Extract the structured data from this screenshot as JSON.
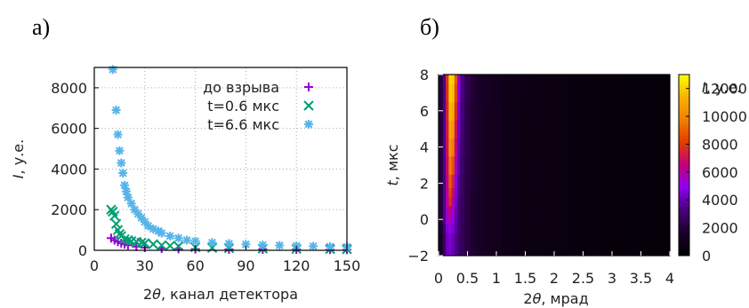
{
  "panels": {
    "left_label": "а)",
    "right_label": "б)"
  },
  "chart_data": [
    {
      "type": "scatter",
      "xlabel_prefix": "2",
      "xlabel_theta": "θ",
      "xlabel_rest": ", канал детектора",
      "ylabel_I": "I",
      "ylabel_rest": ", у.е.",
      "xlim": [
        0,
        150
      ],
      "ylim": [
        0,
        9000
      ],
      "xticks": [
        0,
        30,
        60,
        90,
        120,
        150
      ],
      "yticks": [
        0,
        2000,
        4000,
        6000,
        8000
      ],
      "grid": true,
      "legend_position": "top-right",
      "series": [
        {
          "name": "до взрыва",
          "marker": "plus",
          "color": "#9400d3",
          "x": [
            10,
            12,
            14,
            16,
            18,
            20,
            25,
            30,
            40,
            50,
            60,
            80,
            100,
            120,
            140,
            150
          ],
          "y": [
            600,
            500,
            420,
            350,
            300,
            250,
            180,
            130,
            90,
            70,
            60,
            50,
            45,
            40,
            35,
            30
          ]
        },
        {
          "name": "t=0.6 мкс",
          "marker": "x",
          "color": "#009e73",
          "x": [
            10,
            11,
            12,
            13,
            14,
            15,
            16,
            18,
            20,
            22,
            25,
            28,
            30,
            35,
            40,
            45,
            50,
            60,
            70,
            80,
            100,
            120,
            140,
            150
          ],
          "y": [
            2000,
            1900,
            1700,
            1300,
            1000,
            800,
            700,
            550,
            500,
            450,
            420,
            380,
            350,
            300,
            250,
            220,
            200,
            150,
            120,
            100,
            80,
            70,
            60,
            55
          ]
        },
        {
          "name": "t=6.6 мкс",
          "marker": "star",
          "color": "#56b4e9",
          "x": [
            11,
            13,
            14,
            15,
            16,
            17,
            18,
            19,
            20,
            22,
            24,
            26,
            28,
            30,
            32,
            35,
            38,
            40,
            45,
            50,
            55,
            60,
            70,
            80,
            90,
            100,
            110,
            120,
            130,
            140,
            150
          ],
          "y": [
            8900,
            6900,
            5700,
            4900,
            4300,
            3800,
            3200,
            2900,
            2600,
            2300,
            2000,
            1800,
            1600,
            1400,
            1200,
            1050,
            950,
            850,
            700,
            600,
            500,
            450,
            380,
            330,
            290,
            260,
            240,
            220,
            200,
            180,
            170
          ]
        }
      ]
    },
    {
      "type": "heatmap",
      "xlabel_prefix": "2",
      "xlabel_theta": "θ",
      "xlabel_rest": ", мрад",
      "ylabel_t": "t",
      "ylabel_rest": ", мкс",
      "colorbar_label_I": "I",
      "colorbar_label_rest": ", у.е.",
      "xlim": [
        0,
        4
      ],
      "ylim": [
        -2,
        8
      ],
      "xticks": [
        0,
        0.5,
        1,
        1.5,
        2,
        2.5,
        3,
        3.5,
        4
      ],
      "yticks": [
        -2,
        0,
        2,
        4,
        6,
        8
      ],
      "color_range": [
        0,
        13000
      ],
      "colorbar_ticks": [
        0,
        2000,
        4000,
        6000,
        8000,
        10000,
        12000
      ],
      "colormap": [
        "#000000",
        "#1a0029",
        "#470079",
        "#8d00f0",
        "#c2007c",
        "#e13b00",
        "#f08000",
        "#f8b100",
        "#ffff00"
      ],
      "x_centers": [
        0.05,
        0.1,
        0.15,
        0.2,
        0.25,
        0.3,
        0.35,
        0.4,
        0.5,
        0.6,
        0.7,
        0.8,
        1.0,
        1.2,
        1.5,
        2.0,
        2.5,
        3.0,
        3.5,
        4.0
      ],
      "t_centers": [
        -2,
        -1,
        -0.5,
        0,
        0.5,
        1,
        1.5,
        2,
        3,
        4,
        5,
        6,
        7,
        8
      ],
      "z": [
        [
          1500,
          2800,
          4200,
          4400,
          4000,
          3500,
          3000,
          2600,
          2100,
          1700,
          1500,
          1300,
          1100,
          900,
          750,
          600,
          500,
          450,
          400,
          350
        ],
        [
          1500,
          2800,
          4200,
          4500,
          4100,
          3500,
          3000,
          2600,
          2100,
          1700,
          1500,
          1300,
          1100,
          900,
          750,
          600,
          500,
          450,
          400,
          350
        ],
        [
          1700,
          3000,
          4500,
          5000,
          4500,
          3700,
          3100,
          2600,
          2100,
          1700,
          1500,
          1300,
          1100,
          900,
          750,
          600,
          500,
          450,
          400,
          350
        ],
        [
          2000,
          3500,
          5200,
          5800,
          5000,
          3900,
          3200,
          2700,
          2100,
          1700,
          1500,
          1300,
          1100,
          900,
          750,
          600,
          500,
          450,
          400,
          350
        ],
        [
          2000,
          3500,
          5500,
          6500,
          5500,
          4000,
          3200,
          2700,
          2100,
          1700,
          1500,
          1300,
          1100,
          900,
          750,
          600,
          500,
          450,
          400,
          350
        ],
        [
          2000,
          3500,
          6000,
          7800,
          6200,
          4300,
          3300,
          2700,
          2100,
          1700,
          1500,
          1300,
          1100,
          900,
          750,
          600,
          500,
          450,
          400,
          350
        ],
        [
          2000,
          3500,
          6000,
          8400,
          6800,
          4500,
          3400,
          2800,
          2100,
          1700,
          1500,
          1300,
          1100,
          900,
          750,
          600,
          500,
          450,
          400,
          350
        ],
        [
          2000,
          3500,
          6300,
          9000,
          7500,
          4800,
          3500,
          2800,
          2200,
          1800,
          1500,
          1300,
          1100,
          900,
          750,
          600,
          500,
          450,
          400,
          350
        ],
        [
          2000,
          3500,
          6700,
          9700,
          8700,
          5500,
          3800,
          2900,
          2200,
          1800,
          1500,
          1300,
          1100,
          900,
          750,
          600,
          500,
          450,
          400,
          350
        ],
        [
          2000,
          3500,
          7000,
          10500,
          9700,
          6300,
          4000,
          3000,
          2300,
          1800,
          1500,
          1300,
          1100,
          900,
          750,
          600,
          500,
          450,
          400,
          350
        ],
        [
          2000,
          3500,
          7200,
          11000,
          10500,
          7000,
          4300,
          3100,
          2300,
          1800,
          1500,
          1300,
          1100,
          900,
          750,
          600,
          500,
          450,
          400,
          350
        ],
        [
          2000,
          3500,
          7500,
          11600,
          11200,
          7700,
          4600,
          3200,
          2300,
          1800,
          1500,
          1300,
          1100,
          900,
          750,
          600,
          500,
          450,
          400,
          350
        ],
        [
          2000,
          3500,
          7800,
          12000,
          11700,
          8300,
          4900,
          3300,
          2400,
          1900,
          1600,
          1400,
          1200,
          950,
          800,
          650,
          550,
          450,
          400,
          350
        ],
        [
          2000,
          3500,
          8000,
          12300,
          12000,
          8800,
          5200,
          3400,
          2400,
          1900,
          1600,
          1400,
          1200,
          950,
          800,
          650,
          550,
          450,
          400,
          350
        ]
      ]
    }
  ]
}
